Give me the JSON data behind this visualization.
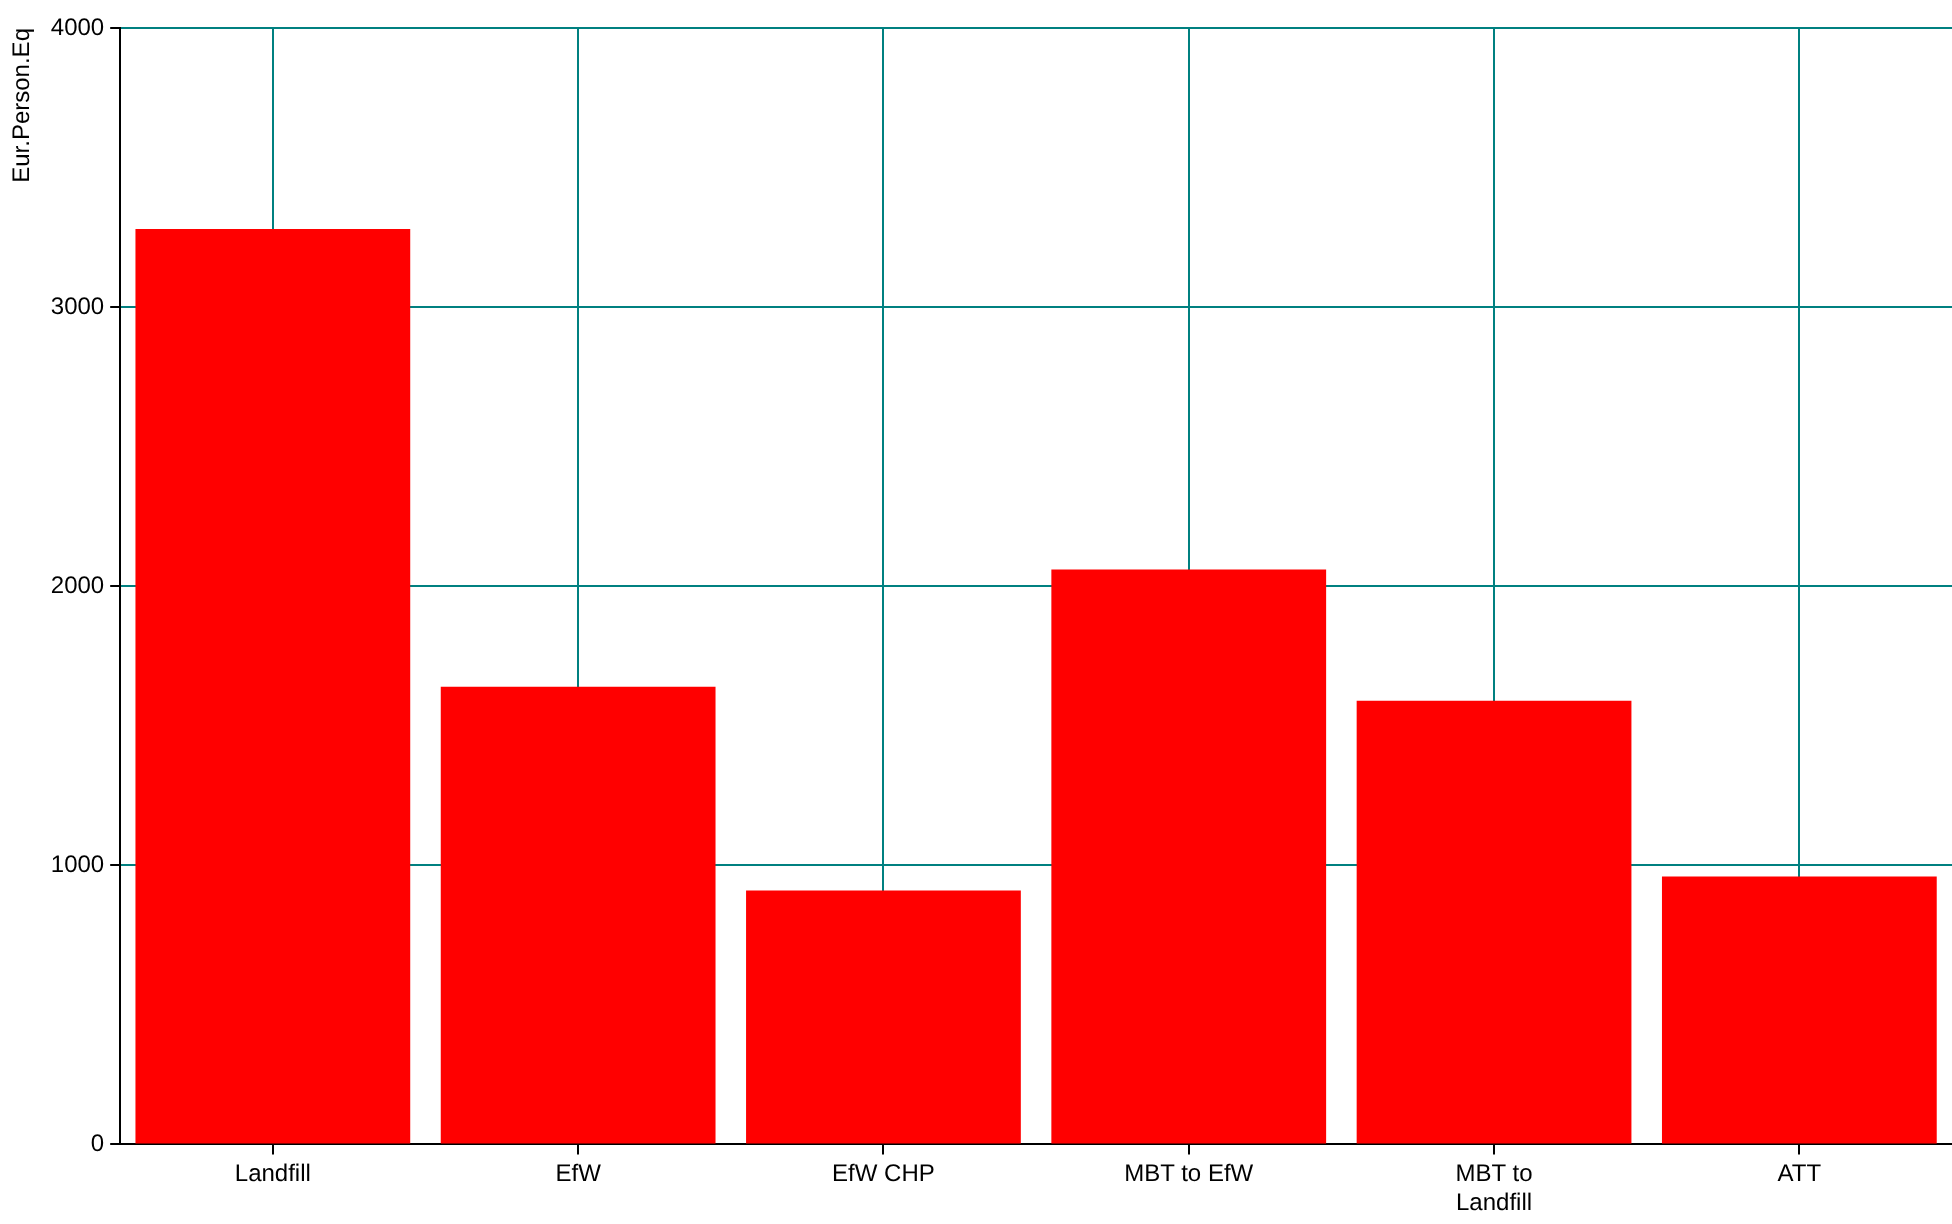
{
  "chart_data": {
    "type": "bar",
    "ylabel": "Eur.Person.Eq",
    "categories": [
      "Landfill",
      "EfW",
      "EfW CHP",
      "MBT to EfW",
      "MBT to Landfill",
      "ATT"
    ],
    "values": [
      3280,
      1640,
      910,
      2060,
      1590,
      960
    ],
    "color": "#ff0000",
    "ylim": [
      0,
      4000
    ],
    "yticks": [
      0,
      1000,
      2000,
      3000,
      4000
    ],
    "grid": true
  }
}
